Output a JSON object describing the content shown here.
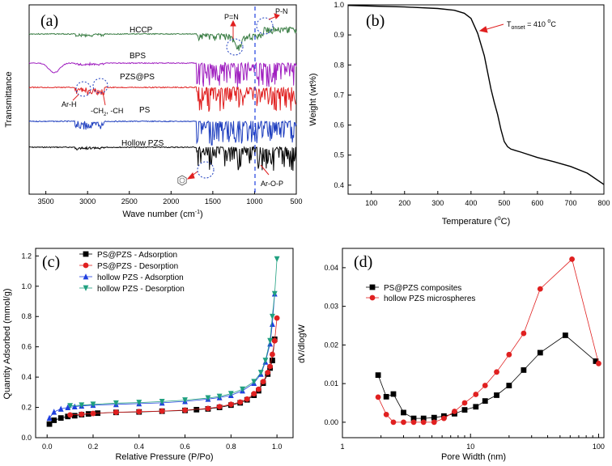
{
  "chart_data": [
    {
      "panel": "(a)",
      "type": "line",
      "xlabel": "Wave number (cm",
      "xlabel_sup": "-1",
      "xlabel_end": ")",
      "ylabel": "Transmittance",
      "xlim": [
        3700,
        500
      ],
      "xticks": [
        "3500",
        "3000",
        "2500",
        "2000",
        "1500",
        "1000",
        "500"
      ],
      "series": [
        {
          "name": "HCCP",
          "color": "#3a7d44",
          "label_color": "#1f3fbf"
        },
        {
          "name": "BPS",
          "color": "#a020c0",
          "label_color": "#1f3fbf"
        },
        {
          "name": "PZS@PS",
          "color": "#e02020",
          "label_color": "#1f3fbf"
        },
        {
          "name": "PS",
          "color": "#1f3fbf",
          "label_color": "#1f3fbf"
        },
        {
          "name": "Hollow PZS",
          "color": "#000000",
          "label_color": "#1f3fbf"
        }
      ],
      "annotations": {
        "pn1": "P=N",
        "pn2": "P-N",
        "arh": "Ar-H",
        "ch2": "-CH",
        "ch2_sub": "2",
        "ch2_end": ", -CH",
        "arop": "Ar-O-P"
      }
    },
    {
      "panel": "(b)",
      "type": "line",
      "xlabel": "Temperature (",
      "xlabel_sup": "o",
      "xlabel_end": "C)",
      "ylabel": "Weight (wt%)",
      "xlim": [
        30,
        800
      ],
      "ylim": [
        0.37,
        1.0
      ],
      "xticks": [
        "100",
        "200",
        "300",
        "400",
        "500",
        "600",
        "700",
        "800"
      ],
      "yticks": [
        "0.4",
        "0.5",
        "0.6",
        "0.7",
        "0.8",
        "0.9",
        "1.0"
      ],
      "x": [
        30,
        100,
        200,
        300,
        350,
        380,
        400,
        420,
        440,
        460,
        470,
        480,
        490,
        500,
        510,
        520,
        550,
        600,
        650,
        700,
        750,
        800
      ],
      "y": [
        0.998,
        0.996,
        0.993,
        0.988,
        0.982,
        0.972,
        0.955,
        0.905,
        0.83,
        0.72,
        0.675,
        0.635,
        0.585,
        0.545,
        0.528,
        0.52,
        0.51,
        0.492,
        0.478,
        0.462,
        0.44,
        0.402
      ],
      "annotation": {
        "text": "T",
        "sub": "onset",
        "eq": " = 410 ",
        "sup": "o",
        "end": "C"
      }
    },
    {
      "panel": "(c)",
      "type": "line",
      "xlabel": "Relative Pressure (P/Po)",
      "ylabel": "Quantity Adsorbed (mmol/g)",
      "xlim": [
        -0.05,
        1.07
      ],
      "ylim": [
        0.0,
        1.25
      ],
      "xticks": [
        "0.0",
        "0.2",
        "0.4",
        "0.6",
        "0.8",
        "1.0"
      ],
      "yticks": [
        "0.0",
        "0.2",
        "0.4",
        "0.6",
        "0.8",
        "1.0",
        "1.2"
      ],
      "series": [
        {
          "name": "PS@PZS - Adsorption",
          "color": "#000000",
          "marker": "square",
          "x": [
            0.01,
            0.03,
            0.06,
            0.09,
            0.12,
            0.15,
            0.18,
            0.22,
            0.3,
            0.4,
            0.5,
            0.6,
            0.65,
            0.7,
            0.75,
            0.8,
            0.84,
            0.87,
            0.9,
            0.92,
            0.94,
            0.96,
            0.97,
            0.98,
            0.99
          ],
          "y": [
            0.09,
            0.115,
            0.13,
            0.14,
            0.145,
            0.152,
            0.157,
            0.162,
            0.167,
            0.17,
            0.175,
            0.18,
            0.185,
            0.19,
            0.2,
            0.215,
            0.23,
            0.25,
            0.28,
            0.31,
            0.36,
            0.42,
            0.46,
            0.51,
            0.65
          ]
        },
        {
          "name": "PS@PZS - Desorption",
          "color": "#e02020",
          "marker": "circle",
          "x": [
            0.1,
            0.15,
            0.2,
            0.3,
            0.4,
            0.5,
            0.6,
            0.7,
            0.75,
            0.8,
            0.84,
            0.87,
            0.9,
            0.92,
            0.94,
            0.96,
            0.97,
            0.98,
            0.99,
            1.0
          ],
          "y": [
            0.15,
            0.155,
            0.16,
            0.168,
            0.172,
            0.176,
            0.182,
            0.193,
            0.205,
            0.22,
            0.235,
            0.255,
            0.29,
            0.32,
            0.37,
            0.43,
            0.47,
            0.55,
            0.64,
            0.79
          ]
        },
        {
          "name": "hollow PZS - Adsorption",
          "color": "#1f3fdf",
          "marker": "triangle-up",
          "x": [
            0.01,
            0.03,
            0.06,
            0.09,
            0.12,
            0.15,
            0.2,
            0.3,
            0.4,
            0.5,
            0.6,
            0.7,
            0.75,
            0.8,
            0.85,
            0.9,
            0.93,
            0.95,
            0.97,
            0.98,
            0.99
          ],
          "y": [
            0.13,
            0.17,
            0.19,
            0.2,
            0.205,
            0.21,
            0.215,
            0.22,
            0.225,
            0.23,
            0.24,
            0.255,
            0.265,
            0.28,
            0.31,
            0.36,
            0.42,
            0.5,
            0.62,
            0.75,
            0.95
          ]
        },
        {
          "name": "hollow PZS - Desorption",
          "color": "#20a080",
          "marker": "triangle-down",
          "x": [
            0.1,
            0.15,
            0.2,
            0.3,
            0.4,
            0.5,
            0.6,
            0.7,
            0.75,
            0.8,
            0.85,
            0.9,
            0.93,
            0.95,
            0.97,
            0.98,
            0.99,
            1.0
          ],
          "y": [
            0.21,
            0.215,
            0.22,
            0.228,
            0.232,
            0.238,
            0.248,
            0.262,
            0.272,
            0.29,
            0.32,
            0.37,
            0.43,
            0.51,
            0.64,
            0.8,
            0.95,
            1.18
          ]
        }
      ]
    },
    {
      "panel": "(d)",
      "type": "line",
      "xlabel": "Pore Width (nm)",
      "ylabel": "dV/dlogW",
      "xscale": "log",
      "xlim": [
        1,
        110
      ],
      "ylim": [
        -0.004,
        0.045
      ],
      "xticks": [
        "1",
        "10",
        "100"
      ],
      "yticks": [
        "0.00",
        "0.01",
        "0.02",
        "0.03",
        "0.04"
      ],
      "series": [
        {
          "name": "PS@PZS composites",
          "color": "#000000",
          "marker": "square",
          "x": [
            1.9,
            2.2,
            2.5,
            3.0,
            3.6,
            4.3,
            5.2,
            6.2,
            7.5,
            9,
            11,
            13,
            16,
            20,
            26,
            35,
            55,
            95
          ],
          "y": [
            0.0122,
            0.0066,
            0.0073,
            0.0025,
            0.001,
            0.001,
            0.0012,
            0.0016,
            0.0022,
            0.0032,
            0.004,
            0.0055,
            0.007,
            0.0095,
            0.0135,
            0.018,
            0.0225,
            0.0158
          ]
        },
        {
          "name": "hollow PZS microspheres",
          "color": "#e02020",
          "marker": "circle",
          "x": [
            1.9,
            2.2,
            2.5,
            3.0,
            3.6,
            4.3,
            5.2,
            6.2,
            7.5,
            9,
            11,
            13,
            16,
            20,
            26,
            35,
            62,
            100
          ],
          "y": [
            0.0065,
            0.002,
            0.0,
            0.0,
            0.0,
            0.0,
            0.0,
            0.001,
            0.0028,
            0.005,
            0.0072,
            0.0095,
            0.013,
            0.0175,
            0.023,
            0.0345,
            0.0422,
            0.0152
          ]
        }
      ]
    }
  ]
}
